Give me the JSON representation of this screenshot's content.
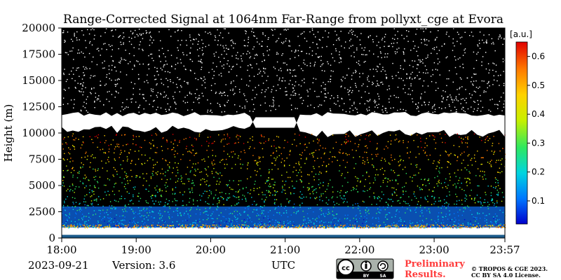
{
  "chart_data": {
    "type": "heatmap",
    "title": "Range-Corrected Signal at 1064nm Far-Range from pollyxt_cge at Evora",
    "ylabel": "Height (m)",
    "xlabel": "UTC",
    "ylim": [
      0,
      20000
    ],
    "yticks": [
      "0",
      "2500",
      "5000",
      "7500",
      "10000",
      "12500",
      "15000",
      "17500",
      "20000"
    ],
    "xticks": [
      "18:00",
      "19:00",
      "20:00",
      "21:00",
      "22:00",
      "23:00",
      "23:57"
    ],
    "x_hours": [
      18.0,
      23.95
    ],
    "colorbar": {
      "unit": "[a.u.]",
      "range": [
        0.02,
        0.65
      ],
      "ticks": [
        "0.1",
        "0.2",
        "0.3",
        "0.4",
        "0.5",
        "0.6"
      ],
      "colormap": [
        "#0000cc",
        "#0077ff",
        "#00d4e0",
        "#2ee860",
        "#c8f000",
        "#ffd200",
        "#ff7a00",
        "#e00000"
      ]
    },
    "features": {
      "cloud_layer_m": [
        10000,
        12000
      ],
      "strong_backscatter_layer_m": [
        1000,
        3000
      ],
      "near_ground_gap_m": [
        300,
        1000
      ],
      "background": "#000000",
      "cloud_color": "#ffffff"
    }
  },
  "footer": {
    "date": "2023-09-21",
    "version": "Version: 3.6",
    "utc": "UTC",
    "preliminary_line1": "Preliminary",
    "preliminary_line2": "Results.",
    "copyright_line1": "© TROPOS & CGE 2023.",
    "copyright_line2": "CC BY SA 4.0 License.",
    "license_badge": "cc-by-sa-icon"
  }
}
